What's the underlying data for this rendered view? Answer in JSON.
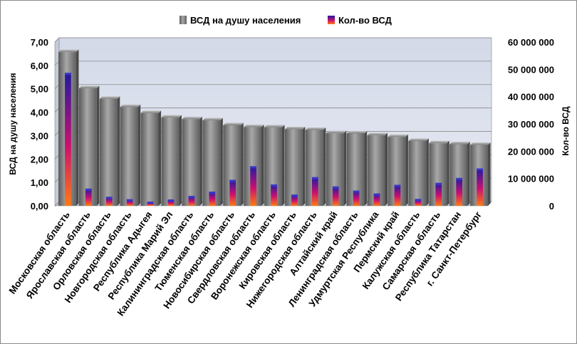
{
  "chart_data": {
    "type": "bar",
    "categories": [
      "Московская область",
      "Ярославская область",
      "Орловская область",
      "Новгородская область",
      "Республика Адыгея",
      "Республика Марий Эл",
      "Калининградская область",
      "Тюменская область",
      "Новосибирская область",
      "Свердловская область",
      "Воронежская область",
      "Кировская область",
      "Нижегородская область",
      "Алтайский край",
      "Ленинградская область",
      "Удмуртская Республика",
      "Пермский край",
      "Калужская область",
      "Самарская область",
      "Республика Татарстан",
      "г. Санкт-Петербург"
    ],
    "series": [
      {
        "name": "ВСД на душу населения",
        "axis": "left",
        "color": "#8c8c8c",
        "values": [
          6.57,
          5.02,
          4.57,
          4.22,
          3.96,
          3.77,
          3.7,
          3.65,
          3.44,
          3.36,
          3.35,
          3.27,
          3.24,
          3.1,
          3.09,
          3.01,
          2.94,
          2.77,
          2.67,
          2.63,
          2.6
        ]
      },
      {
        "name": "Кол-во ВСД",
        "axis": "right",
        "color": "#1f1aa0",
        "values": [
          48700000,
          6300000,
          3300000,
          2400000,
          1500000,
          2300000,
          3600000,
          5200000,
          9500000,
          14500000,
          7800000,
          4100000,
          10500000,
          7100000,
          5600000,
          4500000,
          7700000,
          2500000,
          8400000,
          10200000,
          13700000
        ]
      }
    ],
    "y_left": {
      "label": "ВСД на душу населения",
      "lim": [
        0,
        7
      ],
      "ticks": [
        0,
        1,
        2,
        3,
        4,
        5,
        6,
        7
      ],
      "tick_labels": [
        "0,00",
        "1,00",
        "2,00",
        "3,00",
        "4,00",
        "5,00",
        "6,00",
        "7,00"
      ]
    },
    "y_right": {
      "label": "Кол-во ВСД",
      "lim": [
        0,
        60000000
      ],
      "ticks": [
        0,
        10000000,
        20000000,
        30000000,
        40000000,
        50000000,
        60000000
      ],
      "tick_labels": [
        "0",
        "10 000 000",
        "20 000 000",
        "30 000 000",
        "40 000 000",
        "50 000 000",
        "60 000 000"
      ]
    },
    "grid": true,
    "legend_position": "top",
    "colors": {
      "plot_background": "#d6dcea",
      "gridline": "#8a8a8a",
      "bar_per_capita": "#8c8c8c",
      "bar_count_top": "#1f1aa0",
      "bar_count_mid": "#cc1070",
      "bar_count_bottom": "#ff7a10"
    }
  }
}
